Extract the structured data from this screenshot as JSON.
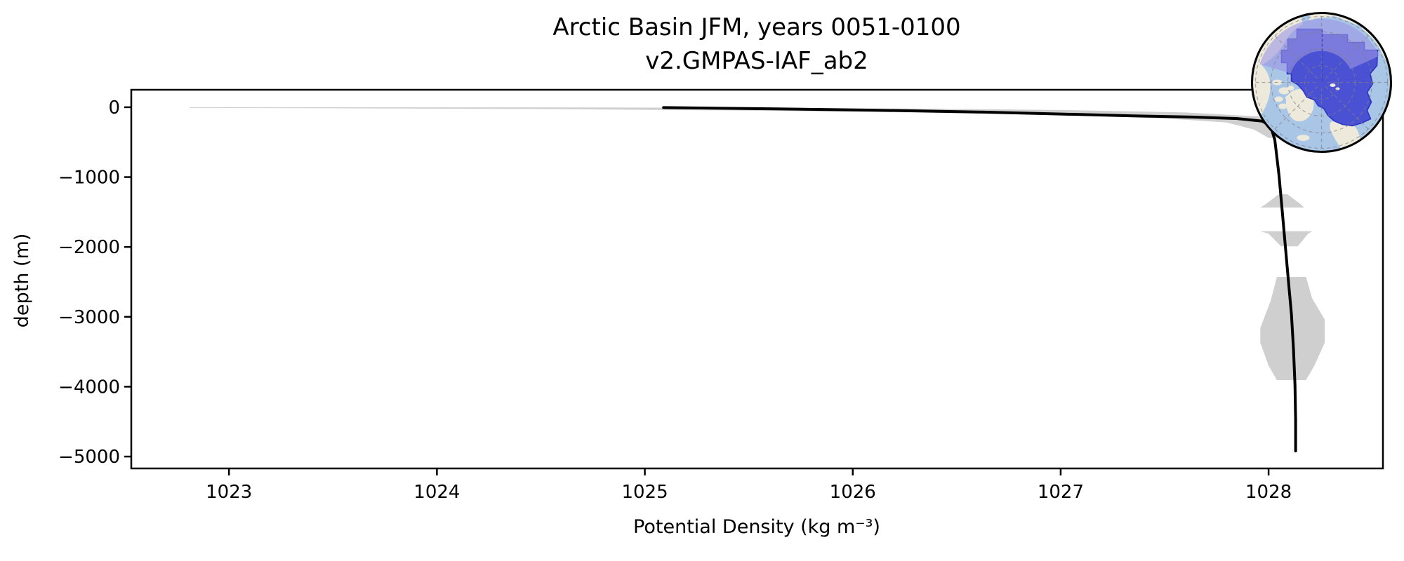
{
  "chart_data": {
    "type": "line",
    "title": "Arctic Basin JFM, years 0051-0100",
    "subtitle": "v2.GMPAS-IAF_ab2",
    "xlabel": "Potential Density (kg m⁻³)",
    "ylabel": "depth (m)",
    "xlim": [
      1022.53,
      1028.55
    ],
    "ylim": [
      -5170,
      250
    ],
    "grid": false,
    "legend": "none",
    "xticks": [
      1023,
      1024,
      1025,
      1026,
      1027,
      1028
    ],
    "xticklabels": [
      "1023",
      "1024",
      "1025",
      "1026",
      "1027",
      "1028"
    ],
    "yticks": [
      0,
      -1000,
      -2000,
      -3000,
      -4000,
      -5000
    ],
    "yticklabels": [
      "0",
      "−1000",
      "−2000",
      "−3000",
      "−4000",
      "−5000"
    ],
    "series": [
      {
        "name": "mean potential density profile",
        "color": "#000000",
        "width": 4,
        "points": [
          [
            1025.09,
            -5
          ],
          [
            1025.6,
            -22
          ],
          [
            1026.1,
            -42
          ],
          [
            1026.6,
            -68
          ],
          [
            1027.0,
            -97
          ],
          [
            1027.35,
            -123
          ],
          [
            1027.63,
            -140
          ],
          [
            1027.85,
            -163
          ],
          [
            1027.97,
            -200
          ],
          [
            1028.01,
            -270
          ],
          [
            1028.03,
            -470
          ],
          [
            1028.05,
            -970
          ],
          [
            1028.065,
            -1470
          ],
          [
            1028.08,
            -1970
          ],
          [
            1028.095,
            -2470
          ],
          [
            1028.11,
            -2970
          ],
          [
            1028.12,
            -3470
          ],
          [
            1028.127,
            -3970
          ],
          [
            1028.13,
            -4470
          ],
          [
            1028.13,
            -4920
          ]
        ]
      }
    ],
    "envelope": {
      "name": "min-max range shading",
      "color": "#cfcfcf",
      "polygons": [
        [
          [
            1022.81,
            -1
          ],
          [
            1024.5,
            -2
          ],
          [
            1025.5,
            -8
          ],
          [
            1026.3,
            -20
          ],
          [
            1027.0,
            -40
          ],
          [
            1027.6,
            -75
          ],
          [
            1027.95,
            -130
          ],
          [
            1028.05,
            -250
          ],
          [
            1028.08,
            -440
          ],
          [
            1028.0,
            -440
          ],
          [
            1027.93,
            -320
          ],
          [
            1027.8,
            -220
          ],
          [
            1027.5,
            -160
          ],
          [
            1027.0,
            -110
          ],
          [
            1026.3,
            -75
          ],
          [
            1025.5,
            -48
          ],
          [
            1024.5,
            -25
          ],
          [
            1023.5,
            -15
          ],
          [
            1022.81,
            -10
          ]
        ],
        [
          [
            1027.96,
            -1435
          ],
          [
            1028.17,
            -1435
          ],
          [
            1028.155,
            -1390
          ],
          [
            1028.09,
            -1245
          ],
          [
            1028.05,
            -1245
          ],
          [
            1027.985,
            -1390
          ]
        ],
        [
          [
            1027.96,
            -1775
          ],
          [
            1028.21,
            -1775
          ],
          [
            1028.19,
            -1810
          ],
          [
            1028.14,
            -1990
          ],
          [
            1028.06,
            -1990
          ],
          [
            1028.0,
            -1810
          ]
        ],
        [
          [
            1028.04,
            -2430
          ],
          [
            1028.18,
            -2430
          ],
          [
            1028.21,
            -2740
          ],
          [
            1028.27,
            -3040
          ],
          [
            1028.27,
            -3370
          ],
          [
            1028.22,
            -3700
          ],
          [
            1028.18,
            -3905
          ],
          [
            1028.04,
            -3905
          ],
          [
            1028.0,
            -3700
          ],
          [
            1027.96,
            -3370
          ],
          [
            1027.96,
            -3160
          ],
          [
            1028.01,
            -2770
          ]
        ]
      ]
    }
  },
  "inset_map": {
    "region_label": "Arctic Basin",
    "colors": {
      "ocean": "#a9c6e7",
      "land": "#edeadb",
      "region_fill": "#4b51d3",
      "region_border": "#2d34c4",
      "region_overlay": "#9b96e4",
      "graticule": "#808080",
      "meridian": "#3a3fd0",
      "rim": "#000000"
    }
  }
}
